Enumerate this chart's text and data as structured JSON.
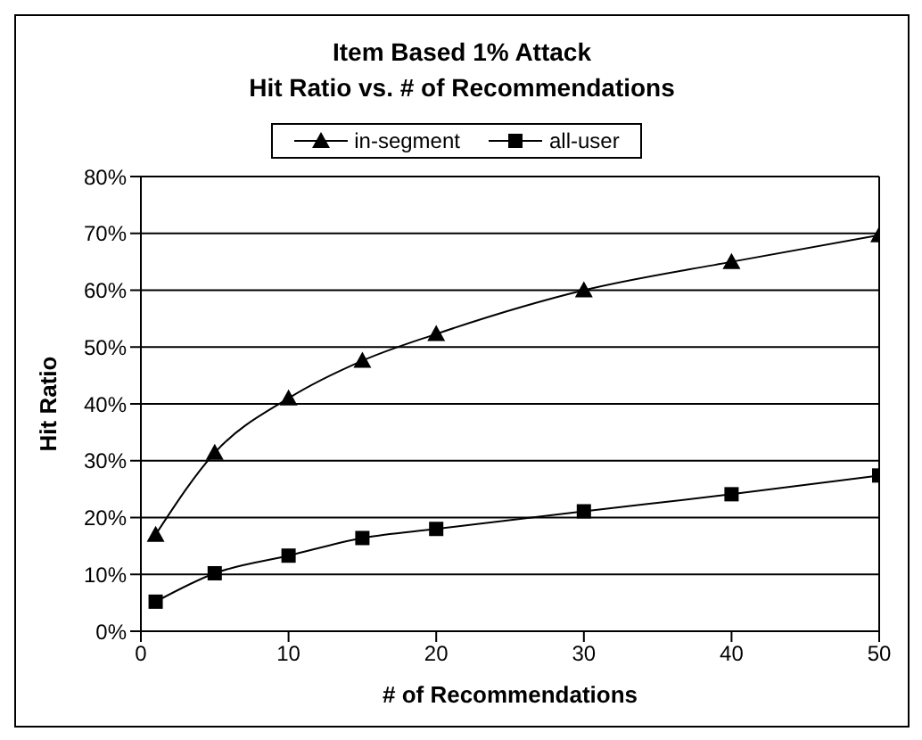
{
  "chart_data": {
    "type": "line",
    "title": "Item Based 1% Attack\nHit Ratio vs. # of Recommendations",
    "xlabel": "# of Recommendations",
    "ylabel": "Hit Ratio",
    "x": [
      1,
      5,
      10,
      15,
      20,
      30,
      40,
      50
    ],
    "series": [
      {
        "name": "in-segment",
        "color": "#000000",
        "marker": "triangle",
        "values": [
          17,
          31.4,
          41,
          47.6,
          52.3,
          60,
          65,
          69.7
        ]
      },
      {
        "name": "all-user",
        "color": "#000000",
        "marker": "square",
        "values": [
          5.2,
          10.2,
          13.3,
          16.4,
          18,
          21.1,
          24.1,
          27.4
        ]
      }
    ],
    "xlim": [
      0,
      50
    ],
    "xticks": [
      0,
      10,
      20,
      30,
      40,
      50
    ],
    "ylim": [
      0,
      80
    ],
    "yticks": [
      {
        "value": 0,
        "label": "0%"
      },
      {
        "value": 10,
        "label": "10%"
      },
      {
        "value": 20,
        "label": "20%"
      },
      {
        "value": 30,
        "label": "30%"
      },
      {
        "value": 40,
        "label": "40%"
      },
      {
        "value": 50,
        "label": "50%"
      },
      {
        "value": 60,
        "label": "60%"
      },
      {
        "value": 70,
        "label": "70%"
      },
      {
        "value": 80,
        "label": "80%"
      }
    ],
    "grid": "y",
    "legend": "top",
    "line_style": "solid"
  }
}
